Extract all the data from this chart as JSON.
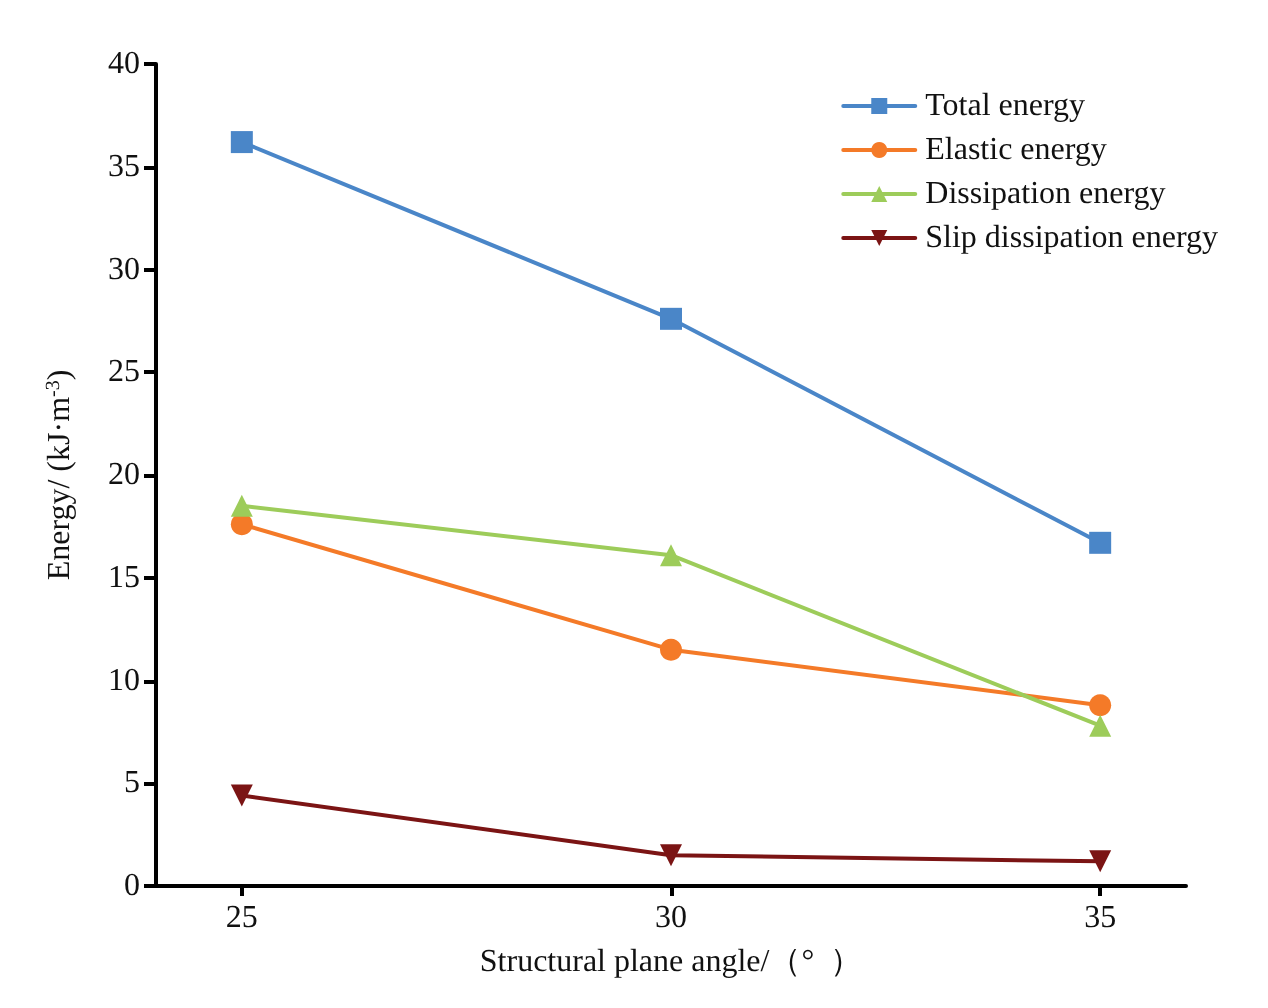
{
  "chart_data": {
    "type": "line",
    "xlabel": "Structural plane angle/（°  ）",
    "ylabel": "Energy/ (kJ·m$^{-3}$)",
    "x": [
      25,
      30,
      35
    ],
    "xlim": [
      24,
      36
    ],
    "xticks": [
      25,
      30,
      35
    ],
    "ylim": [
      0,
      40
    ],
    "yticks": [
      0,
      5,
      10,
      15,
      20,
      25,
      30,
      35,
      40
    ],
    "grid": false,
    "legend": "top right",
    "line_style": "solid",
    "series": [
      {
        "name": "Total energy",
        "color": "#4a86c8",
        "marker": "square",
        "values": [
          36.2,
          27.6,
          16.7
        ]
      },
      {
        "name": "Elastic energy",
        "color": "#f47a28",
        "marker": "circle",
        "values": [
          17.6,
          11.5,
          8.8
        ]
      },
      {
        "name": "Dissipation energy",
        "color": "#9dcc5a",
        "marker": "triangle",
        "values": [
          18.5,
          16.1,
          7.8
        ]
      },
      {
        "name": "Slip dissipation energy",
        "color": "#7b1414",
        "marker": "triangle_down",
        "values": [
          4.4,
          1.5,
          1.2
        ]
      }
    ]
  }
}
